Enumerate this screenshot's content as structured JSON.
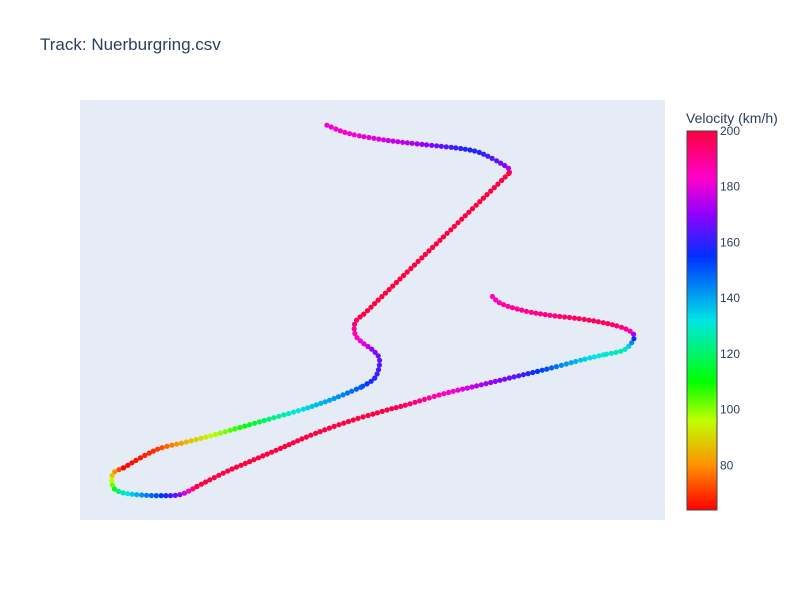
{
  "chart_data": {
    "type": "scatter",
    "title": "Track: Nuerburgring.csv",
    "xlabel": "",
    "ylabel": "",
    "xlim": [
      0,
      100
    ],
    "ylim": [
      0,
      100
    ],
    "grid": false,
    "show_axes": false,
    "plot_background": "#e5ecf6",
    "marker_size": 2.6,
    "colorscale": "hsv",
    "colorbar": {
      "title": "Velocity (km/h)",
      "cmin": 64,
      "cmax": 200,
      "ticks": [
        80,
        100,
        120,
        140,
        160,
        180,
        200
      ],
      "stops": [
        {
          "v": 64,
          "color": "#ff0000"
        },
        {
          "v": 80,
          "color": "#ff9000"
        },
        {
          "v": 96,
          "color": "#c0ff00"
        },
        {
          "v": 110,
          "color": "#00ff00"
        },
        {
          "v": 132,
          "color": "#00e5e5"
        },
        {
          "v": 155,
          "color": "#0030ff"
        },
        {
          "v": 170,
          "color": "#9000ff"
        },
        {
          "v": 183,
          "color": "#ff00cc"
        },
        {
          "v": 200,
          "color": "#ff0040"
        }
      ]
    },
    "series": [
      {
        "segments": [
          [
            [
              42.2,
              94.0,
              182
            ],
            [
              46.0,
              92.0,
              182
            ],
            [
              52.0,
              90.5,
              178
            ],
            [
              58.0,
              89.5,
              172
            ],
            [
              63.0,
              88.8,
              163
            ],
            [
              67.0,
              88.0,
              158
            ],
            [
              69.6,
              86.7,
              162
            ],
            [
              73.2,
              83.8,
              172
            ],
            [
              73.3,
              82.5,
              200
            ]
          ],
          [
            [
              73.3,
              82.5,
              200
            ],
            [
              48.5,
              49.0,
              200
            ]
          ],
          [
            [
              48.5,
              49.0,
              200
            ],
            [
              47.0,
              47.0,
              195
            ],
            [
              47.1,
              44.0,
              185
            ],
            [
              48.5,
              42.0,
              180
            ],
            [
              50.0,
              40.5,
              170
            ],
            [
              51.2,
              38.2,
              165
            ],
            [
              50.5,
              34.0,
              160
            ],
            [
              48.0,
              31.6,
              150
            ]
          ],
          [
            [
              48.0,
              31.6,
              150
            ],
            [
              43.0,
              28.7,
              141
            ],
            [
              38.0,
              26.3,
              133
            ],
            [
              33.0,
              24.3,
              122
            ],
            [
              28.0,
              22.3,
              110
            ],
            [
              23.0,
              20.3,
              97
            ],
            [
              18.0,
              18.5,
              85
            ],
            [
              13.0,
              16.7,
              70
            ],
            [
              7.4,
              12.4,
              64
            ]
          ],
          [
            [
              7.4,
              12.4,
              64
            ],
            [
              5.6,
              11.0,
              85
            ],
            [
              5.6,
              8.0,
              105
            ],
            [
              7.0,
              6.6,
              125
            ],
            [
              10.0,
              6.0,
              140
            ],
            [
              14.0,
              5.8,
              155
            ],
            [
              17.0,
              6.0,
              170
            ],
            [
              19.0,
              7.2,
              190
            ],
            [
              20.0,
              8.0,
              200
            ]
          ],
          [
            [
              20.0,
              8.0,
              200
            ],
            [
              25.0,
              11.5,
              200
            ],
            [
              30.0,
              14.5,
              200
            ],
            [
              35.0,
              17.5,
              200
            ],
            [
              40.0,
              20.5,
              200
            ],
            [
              46.0,
              23.5,
              200
            ],
            [
              52.0,
              26.0,
              200
            ],
            [
              56.0,
              27.5,
              195
            ],
            [
              62.0,
              30.0,
              185
            ],
            [
              68.0,
              32.0,
              175
            ],
            [
              74.0,
              34.0,
              165
            ],
            [
              80.0,
              36.0,
              150
            ],
            [
              86.0,
              38.2,
              135
            ],
            [
              90.0,
              39.5,
              130
            ]
          ],
          [
            [
              90.0,
              39.5,
              130
            ],
            [
              93.0,
              40.5,
              128
            ],
            [
              94.7,
              43.2,
              155
            ],
            [
              94.0,
              45.0,
              185
            ],
            [
              91.0,
              46.5,
              195
            ],
            [
              86.0,
              47.8,
              197
            ],
            [
              80.0,
              48.8,
              192
            ],
            [
              76.0,
              49.8,
              190
            ],
            [
              72.0,
              51.5,
              187
            ],
            [
              70.3,
              53.5,
              182
            ],
            [
              70.2,
              53.5,
              180
            ]
          ]
        ]
      }
    ]
  }
}
